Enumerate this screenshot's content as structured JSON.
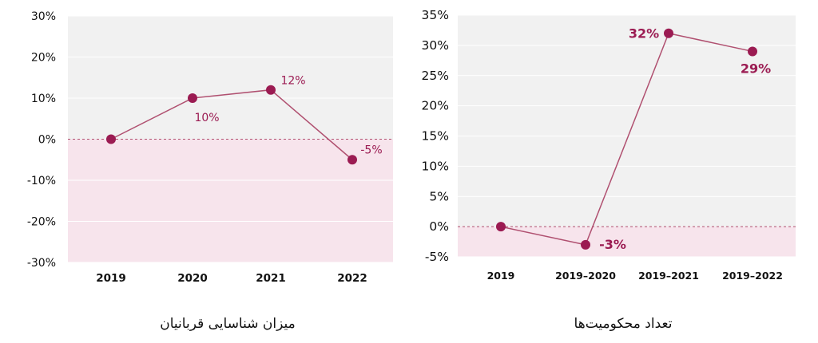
{
  "charts": {
    "left": {
      "caption": "میزان شناسایی قربانیان"
    },
    "right": {
      "caption": "تعداد محکومیت‌ها"
    }
  },
  "colors": {
    "line": "#b05070",
    "marker": "#9b1b52",
    "label": "#9b1b52",
    "plot_bg": "#f1f1f1",
    "negative_band": "#f7e4ec",
    "zero_line": "#b05070"
  },
  "chart_data": [
    {
      "type": "line",
      "title": "",
      "caption": "میزان شناسایی قربانیان",
      "categories": [
        "2019",
        "2020",
        "2021",
        "2022"
      ],
      "series": [
        {
          "values": [
            0,
            10,
            12,
            -5
          ]
        }
      ],
      "data_labels": [
        "",
        "10%",
        "12%",
        "-5%"
      ],
      "yticks": [
        "30%",
        "20%",
        "10%",
        "0%",
        "-10%",
        "-20%",
        "-30%"
      ],
      "ylim": [
        -30,
        30
      ],
      "grid": true
    },
    {
      "type": "line",
      "title": "",
      "caption": "تعداد محکومیت‌ها",
      "categories": [
        "2019",
        "2019–2020",
        "2019–2021",
        "2019–2022"
      ],
      "series": [
        {
          "values": [
            0,
            -3,
            32,
            29
          ]
        }
      ],
      "data_labels": [
        "",
        "-3%",
        "32%",
        "29%"
      ],
      "yticks": [
        "35%",
        "30%",
        "25%",
        "20%",
        "15%",
        "10%",
        "5%",
        "0%",
        "-5%"
      ],
      "ylim": [
        -5,
        35
      ],
      "grid": true
    }
  ]
}
